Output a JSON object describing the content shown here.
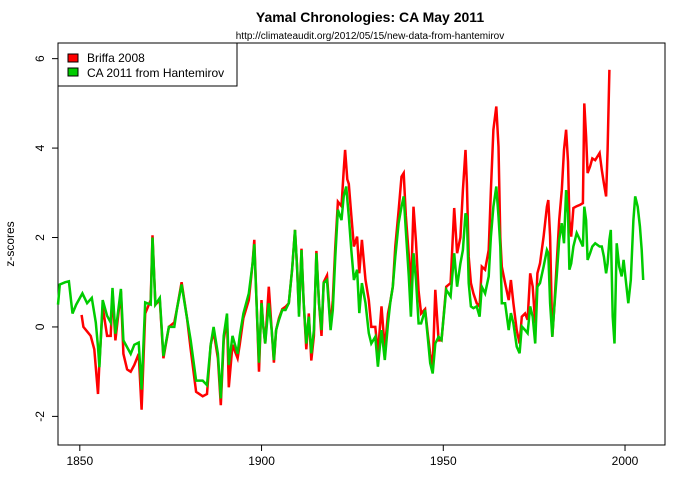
{
  "chart_data": {
    "type": "line",
    "title": "Yamal Chronologies:  CA May 2011",
    "subtitle": "http://climateaudit.org/2012/05/15/new-data-from-hantemirov",
    "xlabel": "",
    "ylabel": "z-scores",
    "xlim": [
      1844,
      2011
    ],
    "ylim": [
      -2.64,
      6.35
    ],
    "xticks": [
      1850,
      1900,
      1950,
      2000
    ],
    "yticks": [
      -2,
      0,
      2,
      4,
      6
    ],
    "grid": false,
    "legend_position": "top-left",
    "series": [
      {
        "name": "Briffa 2008",
        "color": "#ff0000",
        "x": [
          1850.5,
          1851,
          1852,
          1853,
          1854,
          1855,
          1855.4,
          1856.3,
          1857.5,
          1858.5,
          1859,
          1859.8,
          1861.3,
          1862,
          1863,
          1864,
          1865,
          1866.2,
          1867,
          1868,
          1869.5,
          1870,
          1870.8,
          1872,
          1873,
          1874.5,
          1876,
          1876.7,
          1878,
          1879.5,
          1880.5,
          1882,
          1883.8,
          1885,
          1886,
          1886.8,
          1888,
          1888.8,
          1889.6,
          1890.5,
          1891,
          1892,
          1893.4,
          1894,
          1895,
          1896.5,
          1897.5,
          1898,
          1898.7,
          1899.3,
          1900,
          1900.4,
          1901,
          1902,
          1902.8,
          1903.4,
          1904,
          1904.8,
          1905.7,
          1906.6,
          1907.5,
          1908.4,
          1909.2,
          1909.8,
          1910.3,
          1911,
          1911.6,
          1912.3,
          1913,
          1913.7,
          1914.4,
          1915.1,
          1915.8,
          1916.5,
          1917.1,
          1918,
          1919,
          1919.6,
          1920.3,
          1921,
          1922,
          1922.6,
          1923,
          1923.6,
          1924,
          1924.7,
          1925.4,
          1926.3,
          1926.9,
          1927.6,
          1928.6,
          1929.5,
          1930.2,
          1931.3,
          1932,
          1933,
          1933.9,
          1934.8,
          1935.4,
          1936.1,
          1936.8,
          1937.7,
          1938.5,
          1939.1,
          1939.7,
          1940.5,
          1941.1,
          1941.8,
          1942.5,
          1943.2,
          1943.9,
          1945,
          1945.8,
          1946.4,
          1947.1,
          1947.8,
          1948.7,
          1949.5,
          1950.8,
          1952,
          1953,
          1953.8,
          1954.7,
          1955.4,
          1956.1,
          1956.5,
          1957,
          1957.6,
          1958.3,
          1959.2,
          1960,
          1960.6,
          1961.5,
          1962.5,
          1963.1,
          1963.8,
          1964.6,
          1965.2,
          1965.7,
          1966.1,
          1967,
          1968,
          1968.6,
          1969.3,
          1970.2,
          1971,
          1971.6,
          1972.5,
          1973.2,
          1973.9,
          1974.6,
          1975.3,
          1975.9,
          1976.6,
          1977.6,
          1978.5,
          1978.9,
          1979.4,
          1980,
          1980.5,
          1981.2,
          1981.9,
          1982.6,
          1983.2,
          1983.8,
          1984.3,
          1984.7,
          1985.2,
          1985.8,
          1986.7,
          1987.6,
          1988.4,
          1988.8,
          1989.3,
          1989.7,
          1990.4,
          1991,
          1991.8,
          1993,
          1993.6,
          1994.2,
          1994.8,
          1995.2,
          1995.7
        ],
        "y": [
          0.27,
          0.0,
          -0.1,
          -0.2,
          -0.5,
          -1.5,
          -0.8,
          0.45,
          -0.2,
          -0.2,
          0.8,
          -0.3,
          0.8,
          -0.6,
          -0.95,
          -1.0,
          -0.85,
          -0.6,
          -1.85,
          0.3,
          0.6,
          2.05,
          0.5,
          0.6,
          -0.7,
          0.0,
          0.1,
          0.4,
          1.0,
          0.2,
          -0.5,
          -1.45,
          -1.55,
          -1.5,
          -0.4,
          -0.1,
          -0.7,
          -1.75,
          -0.3,
          0.2,
          -1.35,
          -0.4,
          -0.7,
          -0.4,
          0.2,
          0.6,
          1.4,
          1.95,
          0.4,
          -1.0,
          0.6,
          0.08,
          -0.37,
          0.9,
          -0.07,
          -0.8,
          -0.07,
          0.2,
          0.4,
          0.45,
          0.53,
          1.28,
          2.17,
          1.28,
          0.3,
          1.75,
          0.53,
          -0.5,
          0.3,
          -0.75,
          -0.2,
          1.7,
          0.53,
          -0.2,
          1.0,
          1.15,
          0.0,
          0.6,
          1.8,
          2.8,
          2.7,
          3.5,
          3.96,
          3.3,
          3.2,
          2.5,
          1.8,
          2.02,
          1.2,
          1.95,
          1.05,
          0.6,
          0.0,
          0.0,
          -0.6,
          0.46,
          -0.5,
          0.3,
          0.55,
          0.9,
          1.8,
          2.6,
          3.36,
          3.44,
          2.5,
          1.6,
          0.8,
          2.69,
          1.9,
          0.8,
          0.3,
          0.4,
          -0.2,
          -0.6,
          -0.9,
          0.83,
          -0.3,
          -0.3,
          0.9,
          0.98,
          2.66,
          1.65,
          2.0,
          3.06,
          3.96,
          3.2,
          1.57,
          0.98,
          0.75,
          0.53,
          0.46,
          1.35,
          1.28,
          1.72,
          3.06,
          4.41,
          4.93,
          4.03,
          2.0,
          1.35,
          0.98,
          0.6,
          1.05,
          0.53,
          -0.07,
          -0.37,
          0.23,
          0.3,
          0.16,
          1.2,
          0.9,
          0.08,
          1.2,
          1.42,
          2.02,
          2.69,
          2.84,
          2.02,
          -0.22,
          0.38,
          1.42,
          2.39,
          3.06,
          3.96,
          4.41,
          3.7,
          2.39,
          2.02,
          2.66,
          2.7,
          2.73,
          2.77,
          5.0,
          4.26,
          3.44,
          3.59,
          3.77,
          3.73,
          3.89,
          3.51,
          3.21,
          2.92,
          3.96,
          5.75
        ]
      },
      {
        "name": "CA 2011 from Hantemirov",
        "color": "#00cc00",
        "x": [
          1844,
          1844.5,
          1846,
          1847,
          1848,
          1849,
          1850.7,
          1852,
          1853.3,
          1854.4,
          1855,
          1855.4,
          1856.3,
          1857.5,
          1858.5,
          1859,
          1859.8,
          1861.3,
          1862,
          1864,
          1865,
          1866.2,
          1867,
          1868,
          1869.5,
          1870,
          1870.8,
          1872,
          1873,
          1874.5,
          1876,
          1876.7,
          1878,
          1879.5,
          1880.5,
          1882,
          1883.8,
          1885,
          1886,
          1886.8,
          1888,
          1888.8,
          1889.6,
          1890.5,
          1891,
          1892,
          1893.4,
          1894,
          1895,
          1896.5,
          1897.5,
          1898,
          1898.7,
          1899.3,
          1900,
          1900.4,
          1901,
          1902,
          1902.8,
          1903.4,
          1904,
          1904.8,
          1905.7,
          1906.6,
          1907.5,
          1908.4,
          1909.2,
          1909.8,
          1910.3,
          1911,
          1911.6,
          1912.3,
          1913,
          1913.7,
          1914.4,
          1915.1,
          1915.8,
          1916.5,
          1917.1,
          1918,
          1919,
          1919.6,
          1920.3,
          1921,
          1922,
          1922.6,
          1923.3,
          1924,
          1924.7,
          1925.4,
          1926.3,
          1926.9,
          1927.6,
          1928.6,
          1929.5,
          1930.2,
          1931.3,
          1932,
          1933,
          1933.9,
          1934.8,
          1935.4,
          1936.1,
          1936.8,
          1937.7,
          1938.5,
          1939.1,
          1939.7,
          1940.5,
          1941.1,
          1941.8,
          1942.5,
          1943.2,
          1943.9,
          1945,
          1945.8,
          1946.4,
          1947.1,
          1947.8,
          1948.7,
          1949.5,
          1950.8,
          1952,
          1953,
          1953.8,
          1954.7,
          1955.4,
          1956.1,
          1956.5,
          1957,
          1957.6,
          1958.3,
          1959.2,
          1960,
          1960.6,
          1961.5,
          1962.5,
          1963.1,
          1963.8,
          1964.6,
          1965.2,
          1965.7,
          1966.1,
          1967,
          1968,
          1968.6,
          1969.3,
          1970.2,
          1971,
          1971.6,
          1972.5,
          1973.2,
          1973.9,
          1974.6,
          1975.3,
          1975.9,
          1976.6,
          1977.6,
          1978.5,
          1978.9,
          1979.4,
          1980,
          1980.5,
          1981.2,
          1981.9,
          1982.6,
          1983.2,
          1983.8,
          1984.3,
          1984.7,
          1985.2,
          1985.8,
          1986.7,
          1987.6,
          1988.4,
          1988.8,
          1989.3,
          1989.7,
          1990.4,
          1991,
          1991.8,
          1993,
          1993.6,
          1994.2,
          1994.8,
          1995.2,
          1995.7,
          1996.1,
          1996.6,
          1997.1,
          1997.7,
          1998.4,
          1999.1,
          1999.6,
          2000.3,
          2000.9,
          2001.6,
          2002.3,
          2002.8,
          2003.5,
          2004.1,
          2004.6,
          2005
        ],
        "y": [
          0.5,
          0.95,
          1.0,
          1.02,
          0.3,
          0.5,
          0.75,
          0.53,
          0.65,
          0.1,
          -0.45,
          -0.9,
          0.6,
          0.25,
          0.1,
          0.87,
          -0.15,
          0.85,
          -0.3,
          -0.6,
          -0.4,
          -0.35,
          -1.4,
          0.55,
          0.5,
          2.0,
          0.5,
          0.65,
          -0.65,
          0.0,
          0.0,
          0.4,
          0.95,
          0.2,
          -0.3,
          -1.2,
          -1.2,
          -1.3,
          -0.4,
          0.0,
          -0.6,
          -1.6,
          -0.2,
          0.3,
          -0.85,
          -0.2,
          -0.6,
          -0.2,
          0.3,
          0.75,
          1.4,
          1.85,
          0.4,
          -0.8,
          0.53,
          0.08,
          -0.37,
          0.53,
          -0.07,
          -0.74,
          -0.07,
          0.16,
          0.38,
          0.38,
          0.53,
          1.28,
          2.17,
          1.28,
          0.23,
          1.72,
          0.53,
          -0.37,
          0.23,
          -0.59,
          -0.07,
          1.65,
          0.53,
          -0.07,
          0.98,
          1.05,
          -0.07,
          0.38,
          1.57,
          2.62,
          2.39,
          2.92,
          3.14,
          2.47,
          1.72,
          1.05,
          1.28,
          0.31,
          0.98,
          0.53,
          -0.14,
          -0.37,
          -0.22,
          -0.89,
          -0.07,
          -0.74,
          0.08,
          0.53,
          0.9,
          1.57,
          2.32,
          2.69,
          2.92,
          2.17,
          1.13,
          0.23,
          1.65,
          1.05,
          0.08,
          0.08,
          0.38,
          -0.29,
          -0.81,
          -1.04,
          -0.37,
          -0.22,
          -0.29,
          0.83,
          0.68,
          1.65,
          0.9,
          1.42,
          1.72,
          2.54,
          2.47,
          0.98,
          0.46,
          0.42,
          0.46,
          0.23,
          0.9,
          0.75,
          1.13,
          2.02,
          2.69,
          3.14,
          2.47,
          1.8,
          0.53,
          0.53,
          -0.07,
          0.31,
          0.08,
          -0.44,
          -0.59,
          0.01,
          -0.07,
          -0.14,
          0.46,
          0.23,
          -0.37,
          0.9,
          0.98,
          1.35,
          1.72,
          1.65,
          0.53,
          -0.22,
          0.38,
          1.13,
          1.95,
          2.32,
          1.87,
          3.06,
          2.54,
          1.28,
          1.42,
          1.8,
          2.1,
          1.95,
          1.8,
          2.69,
          2.39,
          1.5,
          1.65,
          1.8,
          1.87,
          1.8,
          1.8,
          1.57,
          1.2,
          1.42,
          1.95,
          2.17,
          0.23,
          -0.37,
          1.87,
          1.35,
          1.13,
          1.5,
          0.98,
          0.53,
          1.05,
          2.39,
          2.92,
          2.69,
          2.25,
          1.72,
          1.05
        ]
      }
    ]
  }
}
